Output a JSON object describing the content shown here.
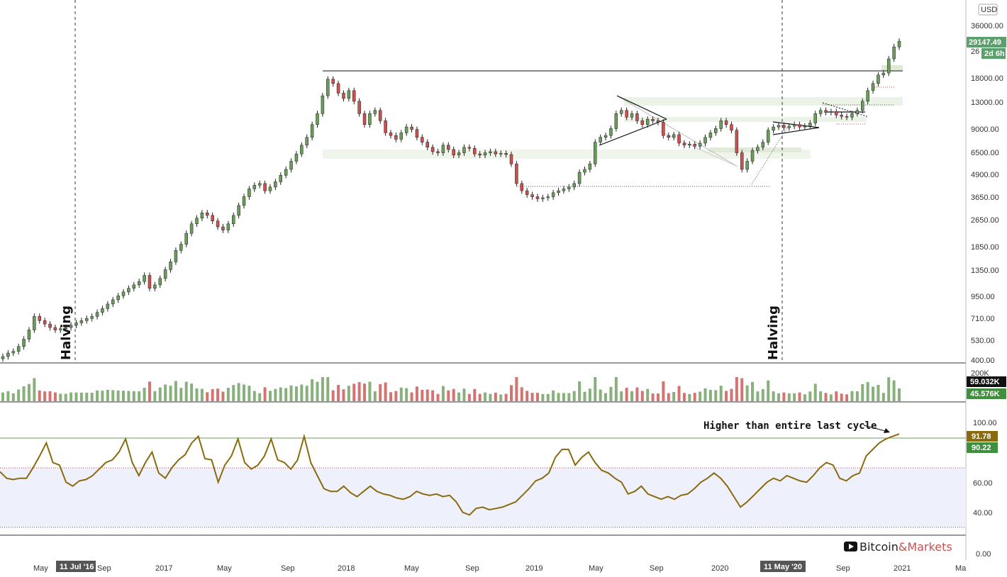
{
  "colors": {
    "up": "#6a9c5c",
    "down": "#c9514f",
    "rsi_line": "#8a6a0f",
    "rsi_band": "#eef1fb",
    "zone": "#e6efe0",
    "price_tag": "#5b9f6c",
    "volume_tag_dark": "#111111",
    "volume_tag_green": "#3f8f3f",
    "rsi_tag_brown": "#8a6a0f",
    "rsi_tag_green": "#3f8f3f",
    "date_tag": "#555555"
  },
  "chart_data": {
    "type": "candlestick",
    "currency_label": "USD",
    "price_axis_ticks": [
      "36000.00",
      "29147.49",
      "18000.00",
      "13000.00",
      "9000.00",
      "6500.00",
      "4900.00",
      "3650.00",
      "2650.00",
      "1850.00",
      "1350.00",
      "950.00",
      "710.00",
      "530.00",
      "400.00"
    ],
    "price_axis_tick_values": [
      36000,
      29147.49,
      18000,
      13000,
      9000,
      6500,
      4900,
      3650,
      2650,
      1850,
      1350,
      950,
      710,
      530,
      400
    ],
    "last_price_tag": "29147.49",
    "last_price_partial_tag": "26",
    "countdown_tag": "2d 6h",
    "volume_axis_ticks": [
      "200K"
    ],
    "volume_tags": [
      "59.032K",
      "45.576K"
    ],
    "rsi_axis_ticks": [
      "100.00",
      "60.00",
      "40.00",
      "0.00"
    ],
    "rsi_tags": [
      "91.78",
      "90.22"
    ],
    "rsi_levels": {
      "overbought": 70,
      "oversold": 30,
      "cycle_high": 91
    },
    "x_axis_labels": [
      "May",
      "Sep",
      "2017",
      "May",
      "Sep",
      "2018",
      "May",
      "Sep",
      "2019",
      "May",
      "Sep",
      "2020",
      "Sep",
      "2021",
      "Ma"
    ],
    "x_axis_highlight_labels": [
      "11 Jul '16",
      "11 May '20"
    ],
    "halving_labels": [
      "Halving",
      "Halving"
    ],
    "annotation_text": "Higher than entire last cycle",
    "candles_weekly_close_approx": [
      420,
      440,
      450,
      480,
      530,
      600,
      720,
      680,
      650,
      620,
      600,
      610,
      620,
      640,
      660,
      680,
      700,
      720,
      760,
      800,
      850,
      900,
      950,
      1000,
      1050,
      1100,
      1150,
      1250,
      1050,
      1100,
      1200,
      1350,
      1500,
      1750,
      1900,
      2200,
      2500,
      2700,
      2900,
      2800,
      2600,
      2400,
      2300,
      2500,
      2800,
      3200,
      3600,
      4000,
      4200,
      4300,
      3900,
      4100,
      4400,
      4800,
      5200,
      5800,
      6400,
      7200,
      8000,
      9500,
      11000,
      14000,
      17500,
      16500,
      14500,
      13500,
      15000,
      13000,
      11000,
      9500,
      11000,
      11500,
      10000,
      8500,
      8200,
      7800,
      8500,
      9200,
      8900,
      8000,
      7500,
      7000,
      6600,
      6500,
      7200,
      6800,
      6300,
      6500,
      7000,
      6900,
      6400,
      6300,
      6500,
      6600,
      6400,
      6450,
      6350,
      5600,
      4300,
      3900,
      3700,
      3600,
      3500,
      3550,
      3600,
      3800,
      3900,
      4000,
      4100,
      4300,
      5000,
      5200,
      5600,
      7500,
      8000,
      8200,
      9000,
      11000,
      11500,
      10500,
      11000,
      10000,
      9500,
      10200,
      10000,
      9800,
      8200,
      8000,
      8300,
      7400,
      7200,
      7300,
      7100,
      7400,
      8000,
      8500,
      9000,
      10000,
      9500,
      8800,
      6500,
      5200,
      5800,
      6700,
      7000,
      7500,
      8800,
      9200,
      9400,
      9100,
      9300,
      9500,
      9200,
      9300,
      9700,
      11000,
      11500,
      11200,
      11300,
      10800,
      10600,
      10500,
      11000,
      11500,
      13000,
      15000,
      16500,
      18500,
      19000,
      23000,
      27000,
      29147.49
    ],
    "resistance_level": 19000,
    "support_level": 3850,
    "rsi_values_approx": [
      63,
      58,
      57,
      58,
      58,
      66,
      75,
      85,
      70,
      68,
      55,
      52,
      56,
      57,
      60,
      65,
      70,
      72,
      78,
      88,
      70,
      60,
      70,
      78,
      62,
      58,
      66,
      72,
      76,
      85,
      90,
      73,
      72,
      55,
      68,
      75,
      88,
      70,
      65,
      68,
      75,
      88,
      72,
      70,
      65,
      72,
      90,
      70,
      60,
      50,
      48,
      48,
      52,
      47,
      44,
      48,
      52,
      48,
      46,
      45,
      43,
      42,
      44,
      48,
      46,
      45,
      46,
      44,
      45,
      40,
      32,
      30,
      35,
      36,
      34,
      35,
      36,
      38,
      40,
      45,
      50,
      56,
      58,
      62,
      74,
      80,
      80,
      68,
      74,
      78,
      70,
      64,
      62,
      58,
      55,
      46,
      48,
      52,
      46,
      44,
      42,
      44,
      42,
      45,
      46,
      50,
      55,
      58,
      62,
      58,
      52,
      44,
      36,
      40,
      45,
      50,
      55,
      58,
      56,
      60,
      58,
      56,
      55,
      60,
      66,
      70,
      68,
      58,
      56,
      60,
      62,
      75,
      80,
      85,
      88,
      90,
      91.78
    ]
  },
  "brand": {
    "icon_name": "youtube-play-icon",
    "name_part1": "Bitcoin",
    "name_part2": "&",
    "name_part3": "Markets"
  }
}
